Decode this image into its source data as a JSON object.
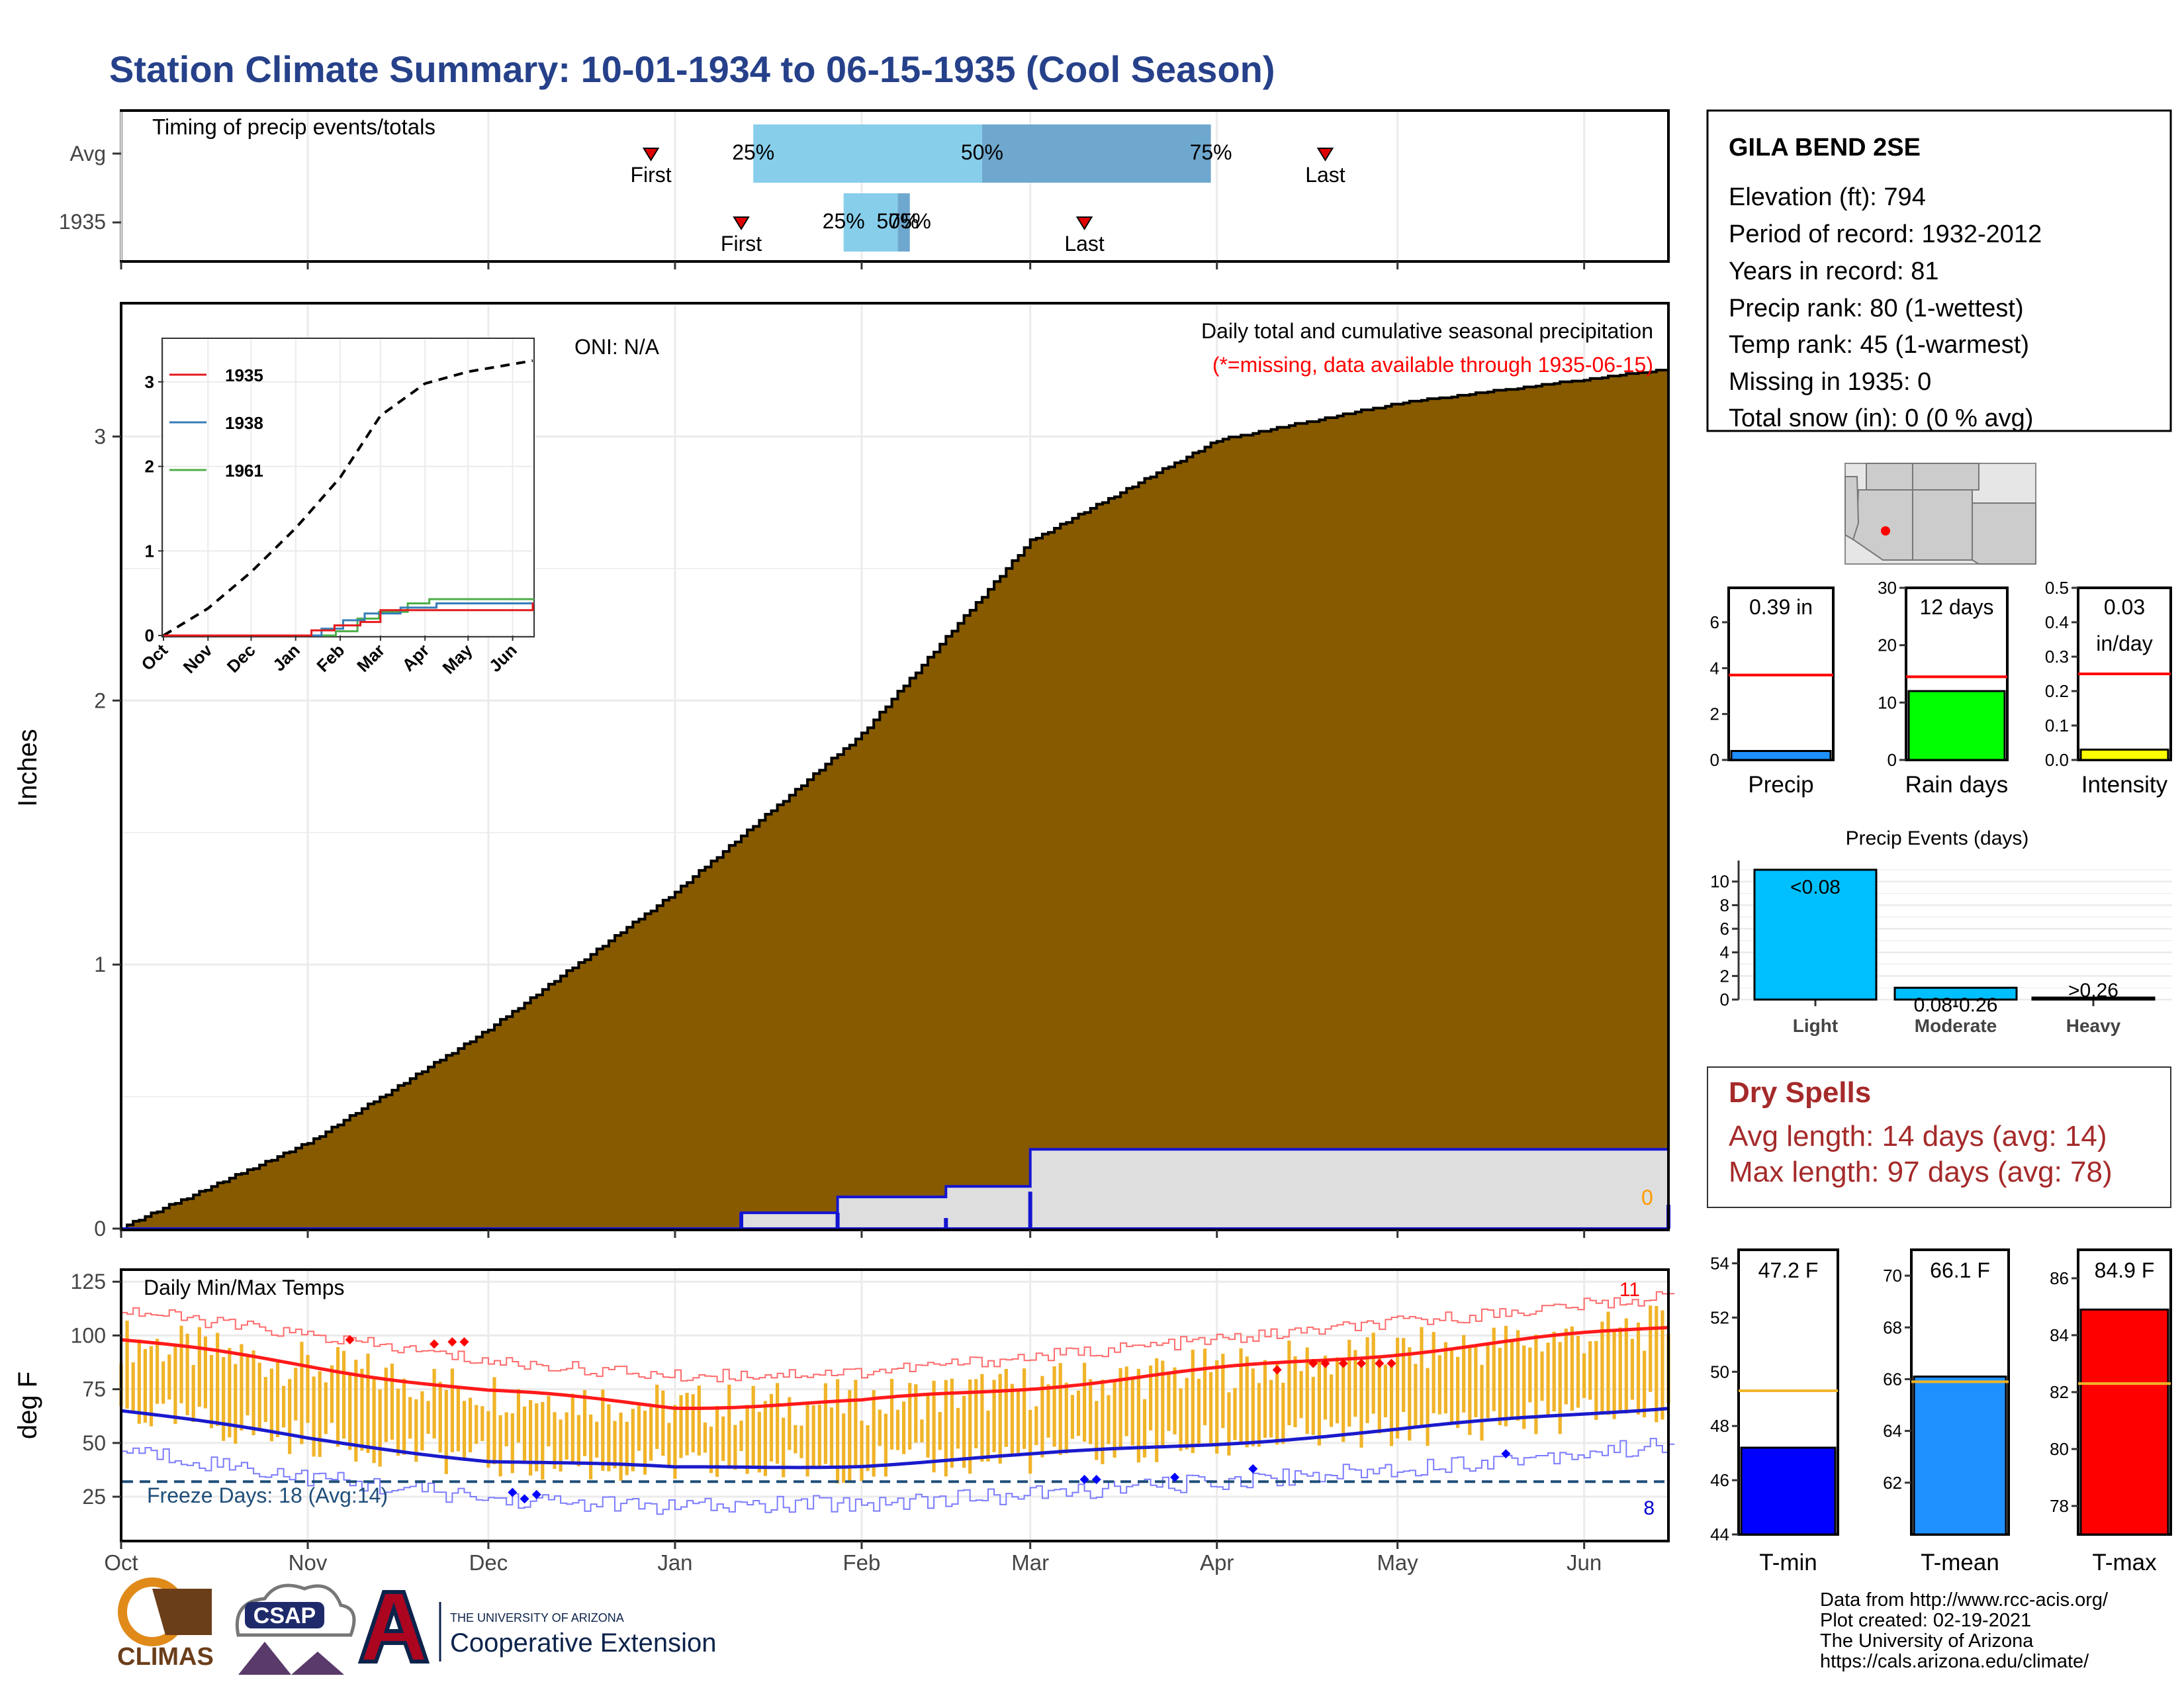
{
  "page": {
    "title": "Station Climate Summary: 10-01-1934 to 06-15-1935 (Cool Season)",
    "title_color": "#26418a"
  },
  "colors": {
    "precip_fill": "#875a00",
    "normal_fill": "#dedede",
    "normal_line": "#1414d2",
    "bar_light": "#87ceeb",
    "bar_dark": "#6fa8cf",
    "temp_bar": "#f0b429",
    "tmax_line": "#ff1a1a",
    "tmin_line": "#1a1acc",
    "station_title": "#a52a2a",
    "freeze_line": "#1f4e79"
  },
  "timing_panel": {
    "title": "Timing of precip events/totals",
    "rows": [
      {
        "label": "Avg",
        "first_date": "1934-12-28",
        "last_date": "1935-04-19",
        "p25": "1935-01-14",
        "p50": "1935-02-21",
        "p75": "1935-03-31",
        "p25_label": "25%",
        "p50_label": "50%",
        "p75_label": "75%",
        "first_label": "First",
        "last_label": "Last"
      },
      {
        "label": "1935",
        "first_date": "1935-01-12",
        "last_date": "1935-03-10",
        "p25": "1935-01-29",
        "p50": "1935-02-07",
        "p75": "1935-02-09",
        "p25_label": "25%",
        "p50_label": "50%",
        "p75_label": "75%",
        "first_label": "First",
        "last_label": "Last"
      }
    ]
  },
  "station": {
    "name": "GILA BEND 2SE",
    "lines": [
      "Elevation (ft): 794",
      "Period of record: 1932-2012",
      "Years in record: 81",
      "Precip rank: 80 (1-wettest)",
      "Temp rank: 45 (1-warmest)",
      "Missing in 1935: 0",
      "Total snow (in): 0 (0 % avg)"
    ]
  },
  "precip_panel": {
    "ylabel": "Inches",
    "title": "Daily total and cumulative seasonal precipitation",
    "missing_note": "(*=missing, data available through 1935-06-15)",
    "oni": "ONI: N/A",
    "zero_label": "0",
    "yticks": [
      "0",
      "1",
      "2",
      "3"
    ]
  },
  "month_labels": [
    "Oct",
    "Nov",
    "Dec",
    "Jan",
    "Feb",
    "Mar",
    "Apr",
    "May",
    "Jun"
  ],
  "inset": {
    "legend": [
      "1935",
      "1938",
      "1961"
    ],
    "legend_colors": [
      "#e41a1c",
      "#377eb8",
      "#4daf4a"
    ],
    "yticks": [
      "0",
      "1",
      "2",
      "3"
    ],
    "xticks": [
      "Oct",
      "Nov",
      "Dec",
      "Jan",
      "Feb",
      "Mar",
      "Apr",
      "May",
      "Jun"
    ]
  },
  "temp_panel": {
    "ylabel": "deg F",
    "title": "Daily Min/Max Temps",
    "freeze_label": "Freeze Days: 18 (Avg:14)",
    "hot_count": "11",
    "cold_count": "8",
    "yticks": [
      "25",
      "50",
      "75",
      "100",
      "125"
    ]
  },
  "mini_bars": [
    {
      "name": "Precip",
      "value_label": "0.39 in",
      "yticks": [
        "0",
        "2",
        "4",
        "6"
      ],
      "color": "#1e90ff"
    },
    {
      "name": "Rain days",
      "value_label": "12 days",
      "yticks": [
        "0",
        "10",
        "20",
        "30"
      ],
      "color": "#00ff00"
    },
    {
      "name": "Intensity",
      "value_label": "0.03",
      "value_label2": "in/day",
      "yticks": [
        "0.0",
        "0.1",
        "0.2",
        "0.3",
        "0.4",
        "0.5"
      ],
      "color": "#ffff00"
    }
  ],
  "events": {
    "title": "Precip Events (days)",
    "categories": [
      "Light",
      "Moderate",
      "Heavy"
    ],
    "labels": [
      "<0.08",
      "0.08-0.26",
      ">0.26"
    ],
    "yticks": [
      "0",
      "2",
      "4",
      "6",
      "8",
      "10"
    ]
  },
  "dry_spells": {
    "title": "Dry Spells",
    "avg": "Avg length: 14 days (avg: 14)",
    "max": "Max length: 97 days (avg: 78)"
  },
  "temp_bars": [
    {
      "name": "T-min",
      "value_label": "47.2 F",
      "yticks": [
        "44",
        "46",
        "48",
        "50",
        "52",
        "54"
      ],
      "color": "#0000ff"
    },
    {
      "name": "T-mean",
      "value_label": "66.1 F",
      "yticks": [
        "62",
        "64",
        "66",
        "68",
        "70"
      ],
      "color": "#1e90ff"
    },
    {
      "name": "T-max",
      "value_label": "84.9 F",
      "yticks": [
        "78",
        "80",
        "82",
        "84",
        "86"
      ],
      "color": "#ff0000"
    }
  ],
  "footer": {
    "lines": [
      "Data from http://www.rcc-acis.org/",
      "Plot created: 02-19-2021",
      "The University of Arizona",
      "https://cals.arizona.edu/climate/"
    ],
    "logo1": "CLIMAS",
    "logo2": "CSAP",
    "logo3_small": "THE UNIVERSITY OF ARIZONA",
    "logo3_big": "Cooperative Extension"
  },
  "chart_data": [
    {
      "type": "area",
      "title": "Daily total and cumulative seasonal precipitation",
      "ylabel": "Inches",
      "ylim": [
        0,
        3.5
      ],
      "x_range": [
        "1934-10-01",
        "1935-06-15"
      ],
      "series": [
        {
          "name": "Average cumulative",
          "x": [
            "1934-10-01",
            "1934-11-01",
            "1934-12-01",
            "1935-01-01",
            "1935-02-01",
            "1935-03-01",
            "1935-04-01",
            "1935-05-01",
            "1935-06-15"
          ],
          "values": [
            0.0,
            0.32,
            0.75,
            1.27,
            1.87,
            2.6,
            2.98,
            3.12,
            3.25
          ]
        },
        {
          "name": "1935",
          "x": [
            "1934-10-01",
            "1934-12-12",
            "1935-01-12",
            "1935-01-28",
            "1935-02-15",
            "1935-03-01",
            "1935-06-15"
          ],
          "values": [
            0.0,
            0.0,
            0.06,
            0.12,
            0.16,
            0.3,
            0.39
          ]
        }
      ]
    },
    {
      "type": "line",
      "title": "Daily Min/Max Temps",
      "ylabel": "deg F",
      "ylim": [
        5,
        125
      ],
      "x_range": [
        "1934-10-01",
        "1935-06-15"
      ],
      "series": [
        {
          "name": "Normal max",
          "x": [
            "1934-10-01",
            "1934-11-01",
            "1934-12-01",
            "1935-01-01",
            "1935-02-01",
            "1935-03-01",
            "1935-04-01",
            "1935-05-01",
            "1935-06-15"
          ],
          "values": [
            98,
            86,
            74,
            67,
            69,
            76,
            84,
            92,
            104
          ]
        },
        {
          "name": "Normal min",
          "x": [
            "1934-10-01",
            "1934-11-01",
            "1934-12-01",
            "1935-01-01",
            "1935-02-01",
            "1935-03-01",
            "1935-04-01",
            "1935-05-01",
            "1935-06-15"
          ],
          "values": [
            65,
            52,
            42,
            38,
            40,
            44,
            50,
            56,
            67
          ]
        }
      ]
    },
    {
      "type": "bar",
      "title": "Precip",
      "categories": [
        "Precip"
      ],
      "values": [
        0.39
      ],
      "normal": 3.7,
      "ylim": [
        0,
        7.5
      ]
    },
    {
      "type": "bar",
      "title": "Rain days",
      "categories": [
        "Rain days"
      ],
      "values": [
        12
      ],
      "normal": 14.5,
      "ylim": [
        0,
        30
      ]
    },
    {
      "type": "bar",
      "title": "Intensity",
      "categories": [
        "Intensity"
      ],
      "values": [
        0.03
      ],
      "normal": 0.25,
      "ylim": [
        0,
        0.5
      ]
    },
    {
      "type": "bar",
      "title": "Precip Events (days)",
      "categories": [
        "Light",
        "Moderate",
        "Heavy"
      ],
      "values": [
        11,
        1,
        0
      ],
      "ylim": [
        0,
        11.5
      ]
    },
    {
      "type": "bar",
      "title": "T-min",
      "categories": [
        "T-min"
      ],
      "values": [
        47.2
      ],
      "normal": 49.3,
      "ylim": [
        44,
        54.5
      ]
    },
    {
      "type": "bar",
      "title": "T-mean",
      "categories": [
        "T-mean"
      ],
      "values": [
        66.1
      ],
      "normal": 65.9,
      "ylim": [
        60,
        71
      ]
    },
    {
      "type": "bar",
      "title": "T-max",
      "categories": [
        "T-max"
      ],
      "values": [
        84.9
      ],
      "normal": 82.3,
      "ylim": [
        77,
        87
      ]
    }
  ]
}
